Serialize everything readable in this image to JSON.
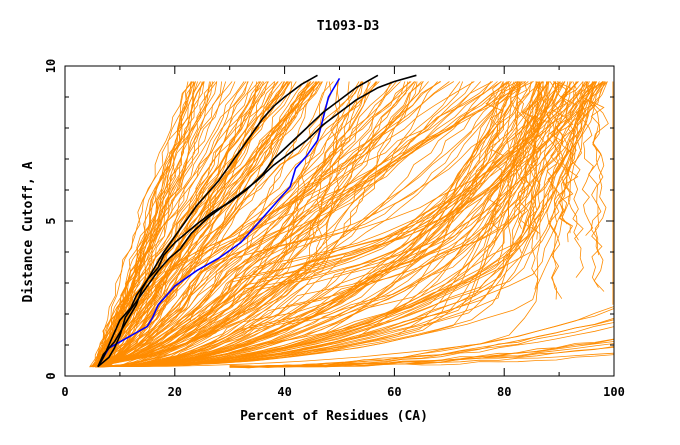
{
  "chart_data": {
    "type": "line",
    "title": "T1093-D3",
    "xlabel": "Percent of Residues (CA)",
    "ylabel": "Distance Cutoff, A",
    "xlim": [
      0,
      100
    ],
    "ylim": [
      0,
      10
    ],
    "x_ticks": [
      "0",
      "20",
      "40",
      "60",
      "80",
      "100"
    ],
    "y_ticks": [
      "0",
      "5",
      "10"
    ],
    "grid": false,
    "legend": "none",
    "colors": {
      "background_models": "#ff8c00",
      "highlight_blue": "#0000ff",
      "highlight_black": "#000000",
      "axis": "#000000"
    },
    "series": [
      {
        "color": "#0000ff",
        "points": [
          [
            6,
            0.3
          ],
          [
            7,
            0.6
          ],
          [
            8,
            0.9
          ],
          [
            10,
            1.1
          ],
          [
            12,
            1.3
          ],
          [
            15,
            1.6
          ],
          [
            16,
            1.9
          ],
          [
            17,
            2.3
          ],
          [
            20,
            2.9
          ],
          [
            24,
            3.4
          ],
          [
            28,
            3.8
          ],
          [
            32,
            4.3
          ],
          [
            35,
            4.9
          ],
          [
            38,
            5.5
          ],
          [
            41,
            6.1
          ],
          [
            42,
            6.7
          ],
          [
            44,
            7.1
          ],
          [
            46,
            7.6
          ],
          [
            47,
            8.3
          ],
          [
            48,
            9.0
          ],
          [
            50,
            9.6
          ]
        ]
      },
      {
        "color": "#000000",
        "points": [
          [
            6,
            0.3
          ],
          [
            8,
            0.6
          ],
          [
            9,
            0.9
          ],
          [
            10,
            1.3
          ],
          [
            11,
            1.9
          ],
          [
            13,
            2.4
          ],
          [
            15,
            2.9
          ],
          [
            17,
            3.4
          ],
          [
            19,
            3.8
          ],
          [
            21,
            4.1
          ],
          [
            23,
            4.6
          ],
          [
            26,
            5.1
          ],
          [
            29,
            5.5
          ],
          [
            32,
            5.9
          ],
          [
            35,
            6.3
          ],
          [
            38,
            6.8
          ],
          [
            41,
            7.2
          ],
          [
            44,
            7.6
          ],
          [
            47,
            8.1
          ],
          [
            50,
            8.5
          ],
          [
            53,
            8.9
          ],
          [
            57,
            9.3
          ],
          [
            60,
            9.5
          ],
          [
            64,
            9.7
          ]
        ]
      },
      {
        "color": "#000000",
        "points": [
          [
            6,
            0.3
          ],
          [
            7,
            0.6
          ],
          [
            8,
            1.0
          ],
          [
            9,
            1.4
          ],
          [
            10,
            1.8
          ],
          [
            12,
            2.2
          ],
          [
            13,
            2.6
          ],
          [
            15,
            3.1
          ],
          [
            17,
            3.5
          ],
          [
            18,
            3.9
          ],
          [
            20,
            4.3
          ],
          [
            22,
            4.6
          ],
          [
            24,
            4.9
          ],
          [
            27,
            5.3
          ],
          [
            30,
            5.6
          ],
          [
            33,
            6.0
          ],
          [
            36,
            6.5
          ],
          [
            38,
            7.0
          ],
          [
            41,
            7.5
          ],
          [
            44,
            8.0
          ],
          [
            47,
            8.5
          ],
          [
            50,
            8.9
          ],
          [
            53,
            9.3
          ],
          [
            57,
            9.7
          ]
        ]
      },
      {
        "color": "#000000",
        "points": [
          [
            6,
            0.3
          ],
          [
            7,
            0.7
          ],
          [
            9,
            1.1
          ],
          [
            11,
            1.7
          ],
          [
            13,
            2.3
          ],
          [
            14,
            2.8
          ],
          [
            16,
            3.4
          ],
          [
            18,
            4.0
          ],
          [
            20,
            4.5
          ],
          [
            22,
            5.0
          ],
          [
            24,
            5.5
          ],
          [
            26,
            5.9
          ],
          [
            28,
            6.3
          ],
          [
            30,
            6.8
          ],
          [
            32,
            7.3
          ],
          [
            34,
            7.8
          ],
          [
            36,
            8.3
          ],
          [
            38,
            8.7
          ],
          [
            40,
            9.0
          ],
          [
            43,
            9.4
          ],
          [
            46,
            9.7
          ]
        ]
      }
    ]
  }
}
